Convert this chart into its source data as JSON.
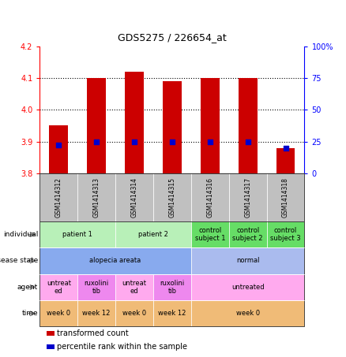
{
  "title": "GDS5275 / 226654_at",
  "samples": [
    "GSM1414312",
    "GSM1414313",
    "GSM1414314",
    "GSM1414315",
    "GSM1414316",
    "GSM1414317",
    "GSM1414318"
  ],
  "transformed_count": [
    3.95,
    4.1,
    4.12,
    4.09,
    4.1,
    4.1,
    3.88
  ],
  "percentile_rank": [
    22,
    25,
    25,
    25,
    25,
    25,
    20
  ],
  "ylim_left": [
    3.8,
    4.2
  ],
  "ylim_right": [
    0,
    100
  ],
  "yticks_left": [
    3.8,
    3.9,
    4.0,
    4.1,
    4.2
  ],
  "yticks_right": [
    0,
    25,
    50,
    75,
    100
  ],
  "bar_color": "#cc0000",
  "dot_color": "#0000cc",
  "sample_bg_color": "#c0c0c0",
  "annotations": {
    "individual": {
      "label": "individual",
      "groups": [
        {
          "text": "patient 1",
          "cols": [
            0,
            1
          ],
          "color": "#b8f0b8"
        },
        {
          "text": "patient 2",
          "cols": [
            2,
            3
          ],
          "color": "#b8f0b8"
        },
        {
          "text": "control\nsubject 1",
          "cols": [
            4
          ],
          "color": "#66dd66"
        },
        {
          "text": "control\nsubject 2",
          "cols": [
            5
          ],
          "color": "#66dd66"
        },
        {
          "text": "control\nsubject 3",
          "cols": [
            6
          ],
          "color": "#66dd66"
        }
      ]
    },
    "disease_state": {
      "label": "disease state",
      "groups": [
        {
          "text": "alopecia areata",
          "cols": [
            0,
            1,
            2,
            3
          ],
          "color": "#88aaee"
        },
        {
          "text": "normal",
          "cols": [
            4,
            5,
            6
          ],
          "color": "#aabbee"
        }
      ]
    },
    "agent": {
      "label": "agent",
      "groups": [
        {
          "text": "untreat\ned",
          "cols": [
            0
          ],
          "color": "#ffaaee"
        },
        {
          "text": "ruxolini\ntib",
          "cols": [
            1
          ],
          "color": "#ee88ee"
        },
        {
          "text": "untreat\ned",
          "cols": [
            2
          ],
          "color": "#ffaaee"
        },
        {
          "text": "ruxolini\ntib",
          "cols": [
            3
          ],
          "color": "#ee88ee"
        },
        {
          "text": "untreated",
          "cols": [
            4,
            5,
            6
          ],
          "color": "#ffaaee"
        }
      ]
    },
    "time": {
      "label": "time",
      "groups": [
        {
          "text": "week 0",
          "cols": [
            0
          ],
          "color": "#f0bb77"
        },
        {
          "text": "week 12",
          "cols": [
            1
          ],
          "color": "#f0bb77"
        },
        {
          "text": "week 0",
          "cols": [
            2
          ],
          "color": "#f0bb77"
        },
        {
          "text": "week 12",
          "cols": [
            3
          ],
          "color": "#f0bb77"
        },
        {
          "text": "week 0",
          "cols": [
            4,
            5,
            6
          ],
          "color": "#f0bb77"
        }
      ]
    }
  },
  "annot_row_order": [
    "individual",
    "disease_state",
    "agent",
    "time"
  ],
  "legend": [
    {
      "color": "#cc0000",
      "label": "transformed count"
    },
    {
      "color": "#0000cc",
      "label": "percentile rank within the sample"
    }
  ]
}
